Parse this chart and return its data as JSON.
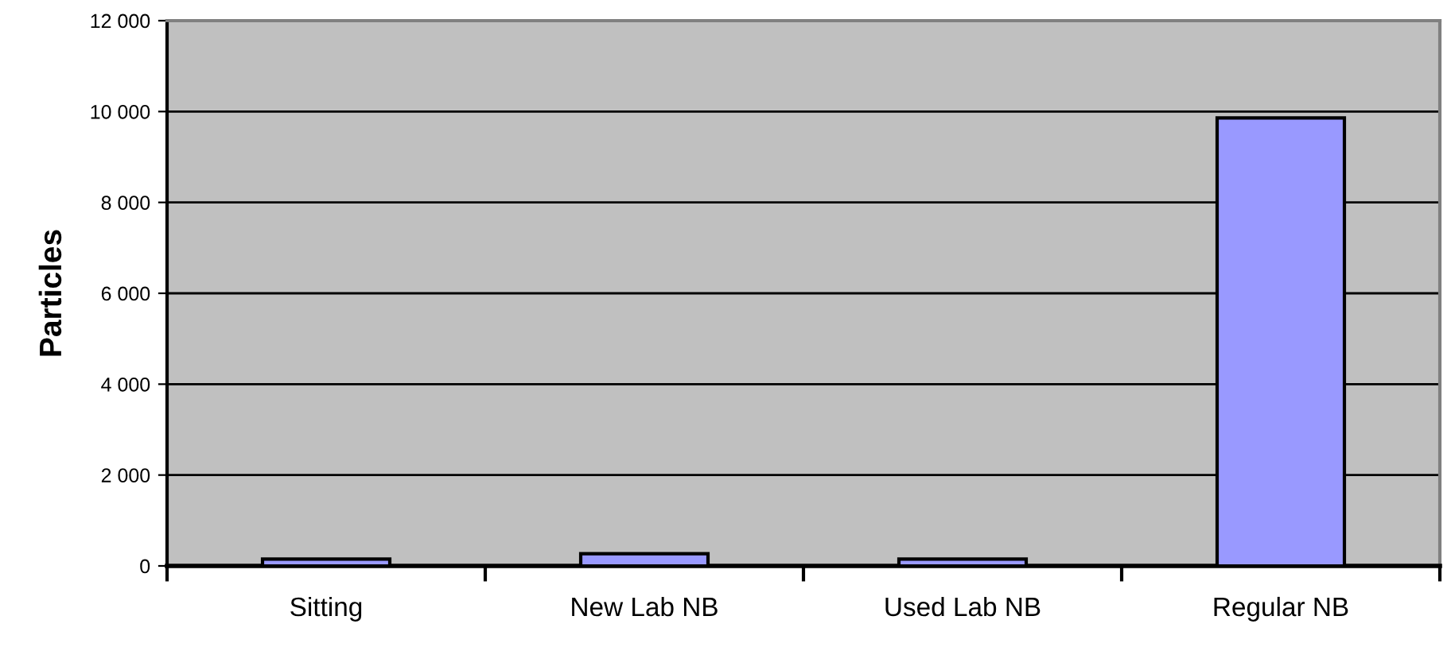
{
  "chart_data": {
    "type": "bar",
    "ylabel": "Particles",
    "categories": [
      "Sitting",
      "New Lab NB",
      "Used Lab NB",
      "Regular NB"
    ],
    "values": [
      150,
      270,
      150,
      9860
    ],
    "color": "#9999ff",
    "ylim": [
      0,
      12000
    ],
    "yticks": [
      0,
      {
        "value": 2000,
        "label": "2 000"
      },
      {
        "value": 4000,
        "label": "4 000"
      },
      {
        "value": 6000,
        "label": "6 000"
      },
      {
        "value": 8000,
        "label": "8 000"
      },
      {
        "value": 10000,
        "label": "10 000"
      },
      {
        "value": 12000,
        "label": "12 000"
      }
    ],
    "grid": "y"
  }
}
